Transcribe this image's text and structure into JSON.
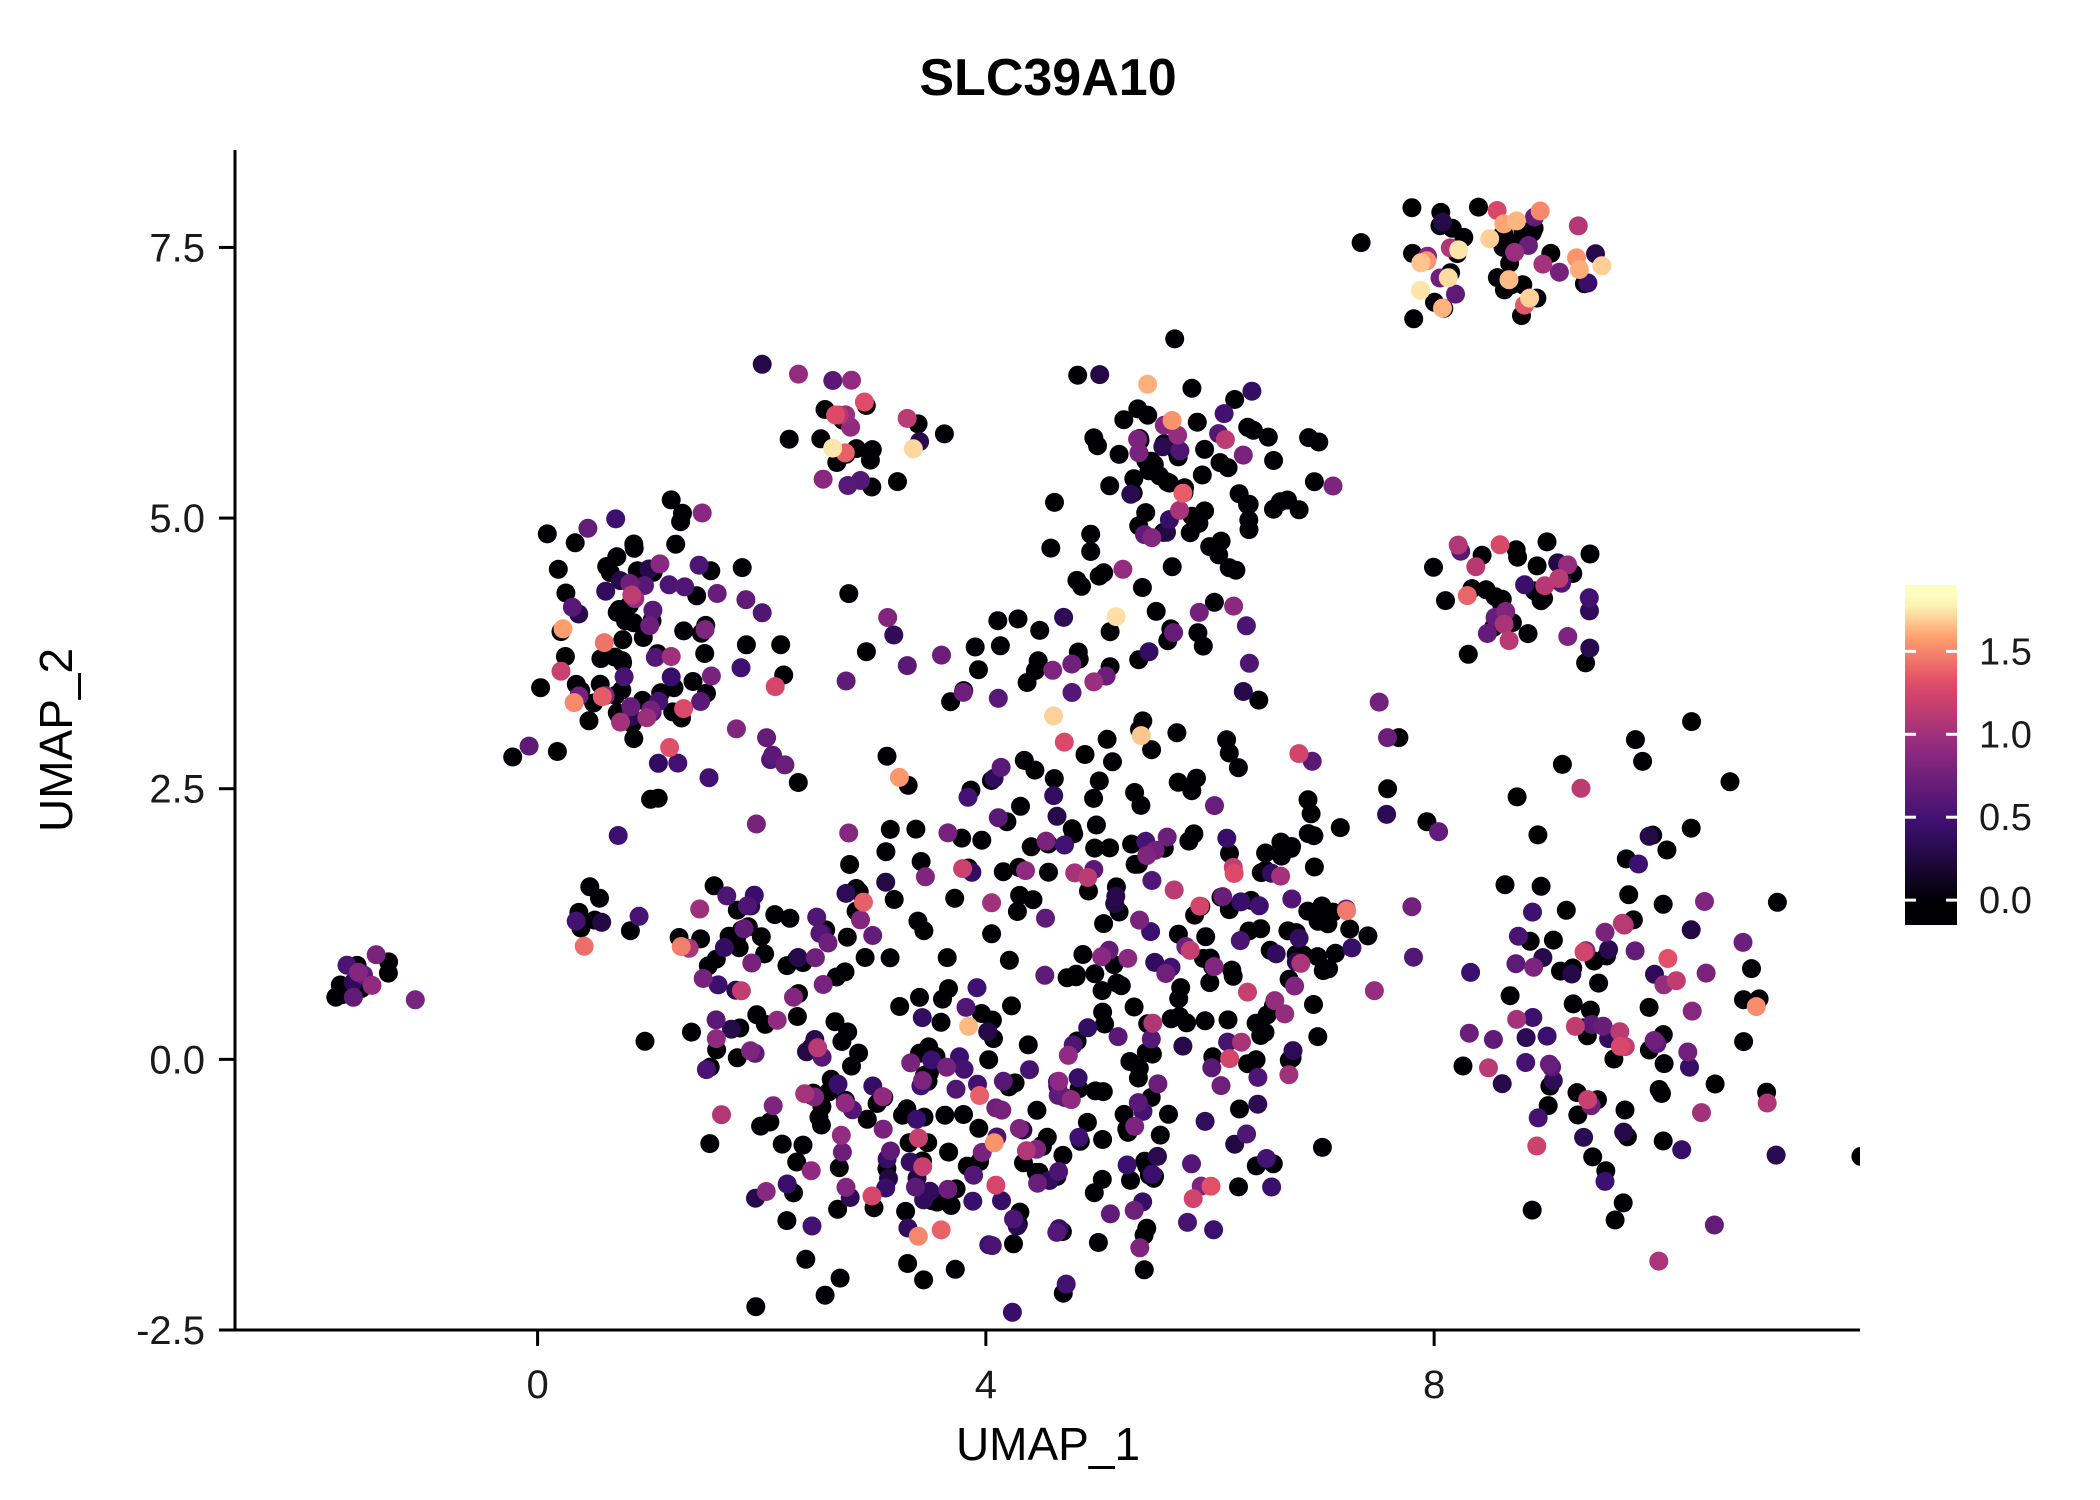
{
  "chart_data": {
    "type": "scatter",
    "title": "SLC39A10",
    "xlabel": "UMAP_1",
    "ylabel": "UMAP_2",
    "xlim": [
      -2.7,
      11.8
    ],
    "ylim": [
      -2.5,
      8.4
    ],
    "grid": false,
    "x_ticks": [
      {
        "value": 0,
        "label": "0"
      },
      {
        "value": 4,
        "label": "4"
      },
      {
        "value": 8,
        "label": "8"
      }
    ],
    "y_ticks": [
      {
        "value": -2.5,
        "label": "-2.5"
      },
      {
        "value": 0,
        "label": "0.0"
      },
      {
        "value": 2.5,
        "label": "2.5"
      },
      {
        "value": 5,
        "label": "5.0"
      },
      {
        "value": 7.5,
        "label": "7.5"
      }
    ],
    "legend": {
      "position": "right",
      "domain": [
        -0.15,
        1.9
      ],
      "ticks": [
        {
          "value": 1.5,
          "label": "1.5"
        },
        {
          "value": 1.0,
          "label": "1.0"
        },
        {
          "value": 0.5,
          "label": "0.5"
        },
        {
          "value": 0.0,
          "label": "0.0"
        }
      ]
    },
    "color_scale": {
      "name": "magma",
      "domain": [
        0,
        1.8
      ],
      "stops": [
        {
          "t": 0.0,
          "color": "#000004"
        },
        {
          "t": 0.25,
          "color": "#3b0f70"
        },
        {
          "t": 0.5,
          "color": "#8c2981"
        },
        {
          "t": 0.72,
          "color": "#de4968"
        },
        {
          "t": 0.88,
          "color": "#fe9f6d"
        },
        {
          "t": 1.0,
          "color": "#fcfdbf"
        }
      ]
    },
    "point_radius": 9.5,
    "seed": 42,
    "expression_levels": {
      "zero": 0,
      "low": [
        0.25,
        0.85
      ],
      "mid": [
        0.85,
        1.35
      ],
      "high": [
        1.35,
        1.75
      ]
    },
    "clusters": [
      {
        "name": "far-left-small",
        "cx": -1.55,
        "cy": 0.72,
        "sx": 0.22,
        "sy": 0.12,
        "n": 16,
        "mix": {
          "zero": 0.4,
          "low": 0.5,
          "mid": 0.1,
          "high": 0.0
        }
      },
      {
        "name": "left-upper",
        "cx": 1.0,
        "cy": 3.85,
        "sx": 0.55,
        "sy": 0.6,
        "n": 115,
        "mix": {
          "zero": 0.5,
          "low": 0.36,
          "mid": 0.1,
          "high": 0.04
        }
      },
      {
        "name": "left-small",
        "cx": 0.55,
        "cy": 1.3,
        "sx": 0.2,
        "sy": 0.15,
        "n": 10,
        "mix": {
          "zero": 0.4,
          "low": 0.3,
          "mid": 0.15,
          "high": 0.15
        }
      },
      {
        "name": "top-middle",
        "cx": 2.85,
        "cy": 5.75,
        "sx": 0.28,
        "sy": 0.3,
        "n": 30,
        "mix": {
          "zero": 0.5,
          "low": 0.2,
          "mid": 0.2,
          "high": 0.1
        }
      },
      {
        "name": "top-right",
        "cx": 8.5,
        "cy": 7.4,
        "sx": 0.5,
        "sy": 0.28,
        "n": 60,
        "mix": {
          "zero": 0.45,
          "low": 0.12,
          "mid": 0.23,
          "high": 0.2
        }
      },
      {
        "name": "right-upper",
        "cx": 8.55,
        "cy": 4.35,
        "sx": 0.38,
        "sy": 0.35,
        "n": 42,
        "mix": {
          "zero": 0.45,
          "low": 0.3,
          "mid": 0.2,
          "high": 0.05
        }
      },
      {
        "name": "upper-center",
        "cx": 5.75,
        "cy": 5.3,
        "sx": 0.55,
        "sy": 0.5,
        "n": 95,
        "mix": {
          "zero": 0.84,
          "low": 0.1,
          "mid": 0.04,
          "high": 0.02
        }
      },
      {
        "name": "center-left",
        "cx": 2.0,
        "cy": 0.7,
        "sx": 0.55,
        "sy": 0.95,
        "n": 95,
        "mix": {
          "zero": 0.55,
          "low": 0.35,
          "mid": 0.08,
          "high": 0.02
        }
      },
      {
        "name": "center-bottom-left",
        "cx": 3.3,
        "cy": -0.7,
        "sx": 0.7,
        "sy": 0.65,
        "n": 90,
        "mix": {
          "zero": 0.52,
          "low": 0.38,
          "mid": 0.08,
          "high": 0.02
        }
      },
      {
        "name": "center-bottom",
        "cx": 4.9,
        "cy": -0.9,
        "sx": 0.8,
        "sy": 0.6,
        "n": 110,
        "mix": {
          "zero": 0.5,
          "low": 0.4,
          "mid": 0.08,
          "high": 0.02
        }
      },
      {
        "name": "center-right",
        "cx": 5.7,
        "cy": 0.8,
        "sx": 0.8,
        "sy": 0.8,
        "n": 110,
        "mix": {
          "zero": 0.55,
          "low": 0.33,
          "mid": 0.1,
          "high": 0.02
        }
      },
      {
        "name": "center-mid",
        "cx": 4.3,
        "cy": 1.9,
        "sx": 0.85,
        "sy": 0.6,
        "n": 75,
        "mix": {
          "zero": 0.6,
          "low": 0.3,
          "mid": 0.08,
          "high": 0.02
        }
      },
      {
        "name": "center-upper",
        "cx": 4.5,
        "cy": 3.6,
        "sx": 1.0,
        "sy": 0.45,
        "n": 50,
        "mix": {
          "zero": 0.55,
          "low": 0.33,
          "mid": 0.1,
          "high": 0.02
        }
      },
      {
        "name": "mid-right-column",
        "cx": 6.6,
        "cy": 1.6,
        "sx": 0.5,
        "sy": 0.9,
        "n": 60,
        "mix": {
          "zero": 0.7,
          "low": 0.22,
          "mid": 0.06,
          "high": 0.02
        }
      },
      {
        "name": "right-lower",
        "cx": 9.6,
        "cy": 0.5,
        "sx": 0.75,
        "sy": 0.95,
        "n": 125,
        "mix": {
          "zero": 0.45,
          "low": 0.42,
          "mid": 0.11,
          "high": 0.02
        }
      }
    ]
  }
}
